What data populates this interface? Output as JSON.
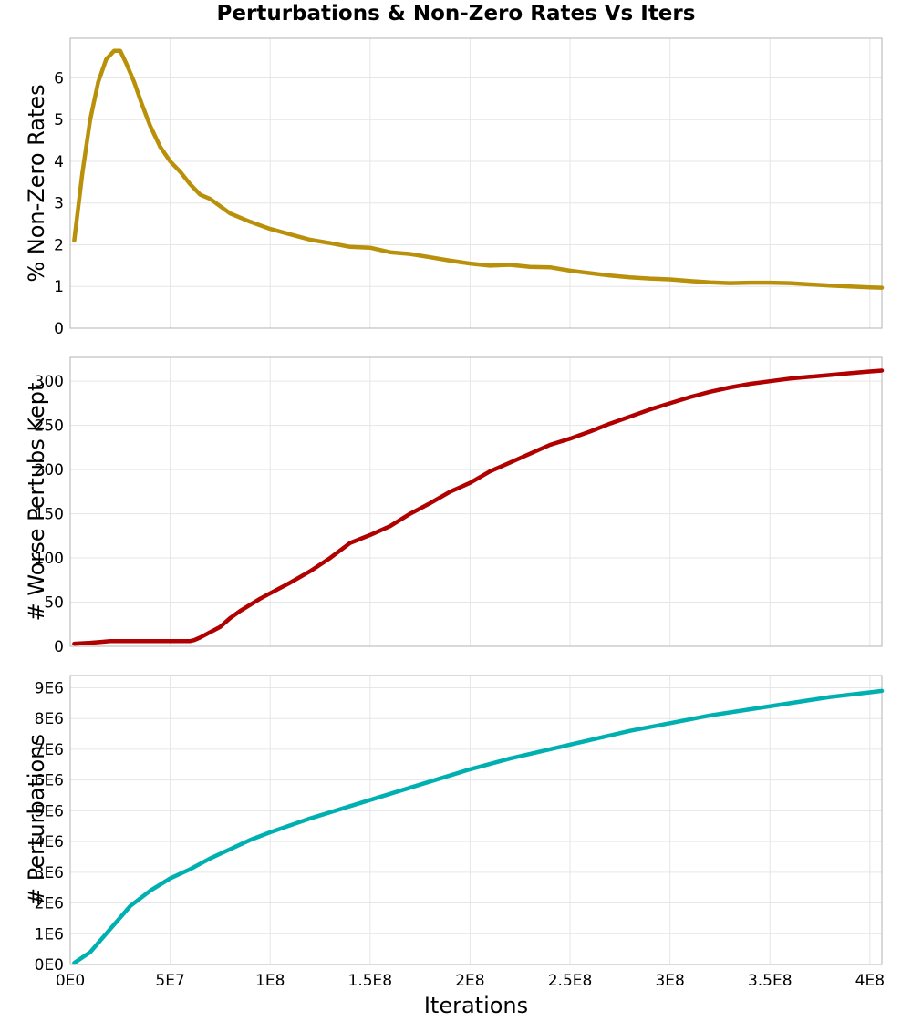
{
  "title": "Perturbations & Non-Zero Rates Vs Iters",
  "chart_data": [
    {
      "type": "line",
      "title": "Perturbations & Non-Zero Rates Vs Iters",
      "xlabel": "",
      "ylabel": "% Non-Zero Rates",
      "xlim": [
        0,
        406000000
      ],
      "ylim": [
        0,
        6.95
      ],
      "yticks": [
        0,
        1,
        2,
        3,
        4,
        5,
        6
      ],
      "ytick_labels": [
        "0",
        "1",
        "2",
        "3",
        "4",
        "5",
        "6"
      ],
      "grid": true,
      "color": "#b8900a",
      "x": [
        2000000,
        6000000,
        10000000,
        14000000,
        18000000,
        22000000,
        25000000,
        28000000,
        32000000,
        36000000,
        40000000,
        45000000,
        50000000,
        55000000,
        60000000,
        65000000,
        70000000,
        80000000,
        90000000,
        100000000,
        110000000,
        120000000,
        130000000,
        140000000,
        150000000,
        160000000,
        170000000,
        180000000,
        190000000,
        200000000,
        210000000,
        220000000,
        230000000,
        240000000,
        250000000,
        260000000,
        270000000,
        280000000,
        290000000,
        300000000,
        310000000,
        320000000,
        330000000,
        340000000,
        350000000,
        360000000,
        370000000,
        380000000,
        390000000,
        400000000,
        406000000
      ],
      "values": [
        2.1,
        3.7,
        5.0,
        5.9,
        6.45,
        6.65,
        6.65,
        6.35,
        5.9,
        5.35,
        4.85,
        4.35,
        4.0,
        3.75,
        3.45,
        3.2,
        3.1,
        2.75,
        2.55,
        2.38,
        2.25,
        2.12,
        2.04,
        1.95,
        1.93,
        1.82,
        1.78,
        1.7,
        1.62,
        1.55,
        1.5,
        1.52,
        1.47,
        1.46,
        1.38,
        1.32,
        1.26,
        1.22,
        1.19,
        1.17,
        1.13,
        1.1,
        1.08,
        1.09,
        1.09,
        1.08,
        1.05,
        1.02,
        1.0,
        0.98,
        0.97
      ]
    },
    {
      "type": "line",
      "xlabel": "",
      "ylabel": "# Worse Pertubs Kept",
      "xlim": [
        0,
        406000000
      ],
      "ylim": [
        0,
        327
      ],
      "yticks": [
        0,
        50,
        100,
        150,
        200,
        250,
        300
      ],
      "ytick_labels": [
        "0",
        "50",
        "100",
        "150",
        "200",
        "250",
        "300"
      ],
      "grid": true,
      "color": "#b00000",
      "x": [
        2000000,
        10000000,
        15000000,
        20000000,
        30000000,
        40000000,
        50000000,
        55000000,
        60000000,
        62000000,
        65000000,
        70000000,
        75000000,
        80000000,
        85000000,
        90000000,
        95000000,
        100000000,
        110000000,
        120000000,
        130000000,
        140000000,
        150000000,
        160000000,
        170000000,
        180000000,
        190000000,
        200000000,
        210000000,
        220000000,
        230000000,
        240000000,
        250000000,
        260000000,
        270000000,
        280000000,
        290000000,
        300000000,
        310000000,
        320000000,
        330000000,
        340000000,
        350000000,
        360000000,
        370000000,
        380000000,
        390000000,
        400000000,
        406000000
      ],
      "values": [
        3,
        4,
        5,
        6,
        6,
        6,
        6,
        6,
        6,
        7,
        10,
        16,
        22,
        32,
        40,
        47,
        54,
        60,
        72,
        85,
        100,
        117,
        126,
        136,
        150,
        162,
        175,
        185,
        198,
        208,
        218,
        228,
        235,
        243,
        252,
        260,
        268,
        275,
        282,
        288,
        293,
        297,
        300,
        303,
        305,
        307,
        309,
        311,
        312
      ]
    },
    {
      "type": "line",
      "xlabel": "Iterations",
      "ylabel": "# Perturbations",
      "xlim": [
        0,
        406000000
      ],
      "ylim": [
        0,
        9400000
      ],
      "yticks": [
        0,
        1000000,
        2000000,
        3000000,
        4000000,
        5000000,
        6000000,
        7000000,
        8000000,
        9000000
      ],
      "ytick_labels": [
        "0E0",
        "1E6",
        "2E6",
        "3E6",
        "4E6",
        "5E6",
        "6E6",
        "7E6",
        "8E6",
        "9E6"
      ],
      "xticks": [
        0,
        50000000,
        100000000,
        150000000,
        200000000,
        250000000,
        300000000,
        350000000,
        400000000
      ],
      "xtick_labels": [
        "0E0",
        "5E7",
        "1E8",
        "1.5E8",
        "2E8",
        "2.5E8",
        "3E8",
        "3.5E8",
        "4E8"
      ],
      "grid": true,
      "color": "#00b0b0",
      "x": [
        2000000,
        10000000,
        20000000,
        30000000,
        40000000,
        50000000,
        60000000,
        70000000,
        80000000,
        90000000,
        100000000,
        120000000,
        140000000,
        160000000,
        180000000,
        200000000,
        220000000,
        240000000,
        260000000,
        280000000,
        300000000,
        320000000,
        340000000,
        360000000,
        380000000,
        400000000,
        406000000
      ],
      "values": [
        50000,
        400000,
        1150000,
        1900000,
        2400000,
        2800000,
        3100000,
        3450000,
        3750000,
        4050000,
        4300000,
        4750000,
        5150000,
        5550000,
        5950000,
        6350000,
        6700000,
        7000000,
        7300000,
        7600000,
        7850000,
        8100000,
        8300000,
        8500000,
        8700000,
        8850000,
        8900000
      ]
    }
  ]
}
